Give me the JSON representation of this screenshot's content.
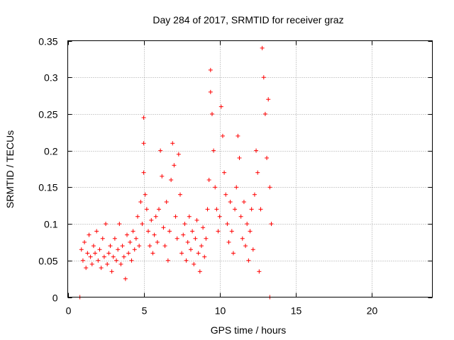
{
  "chart_data": {
    "type": "scatter",
    "title": "Day 284 of 2017, SRMTID for receiver graz",
    "xlabel": "GPS time / hours",
    "ylabel": "SRMTID / TECUs",
    "xlim": [
      0,
      24
    ],
    "ylim": [
      0,
      0.35
    ],
    "xticks": [
      0,
      5,
      10,
      15,
      20
    ],
    "xtick_labels": [
      "0",
      "5",
      "10",
      "15",
      "20"
    ],
    "yticks": [
      0,
      0.05,
      0.1,
      0.15,
      0.2,
      0.25,
      0.3,
      0.35
    ],
    "ytick_labels": [
      "0",
      "0.05",
      "0.1",
      "0.15",
      "0.2",
      "0.25",
      "0.3",
      "0.35"
    ],
    "grid": true,
    "marker": "+",
    "series_color": "#ff0000",
    "series": [
      {
        "name": "SRMTID",
        "points": [
          [
            0.8,
            0.0
          ],
          [
            13.3,
            0.0
          ],
          [
            0.9,
            0.065
          ],
          [
            1.0,
            0.05
          ],
          [
            1.1,
            0.075
          ],
          [
            1.2,
            0.04
          ],
          [
            1.3,
            0.06
          ],
          [
            1.4,
            0.085
          ],
          [
            1.5,
            0.055
          ],
          [
            1.6,
            0.045
          ],
          [
            1.7,
            0.07
          ],
          [
            1.8,
            0.06
          ],
          [
            1.9,
            0.09
          ],
          [
            2.0,
            0.05
          ],
          [
            2.1,
            0.065
          ],
          [
            2.2,
            0.04
          ],
          [
            2.3,
            0.08
          ],
          [
            2.4,
            0.055
          ],
          [
            2.5,
            0.1
          ],
          [
            2.6,
            0.045
          ],
          [
            2.7,
            0.06
          ],
          [
            2.8,
            0.07
          ],
          [
            2.9,
            0.035
          ],
          [
            3.0,
            0.055
          ],
          [
            3.1,
            0.08
          ],
          [
            3.2,
            0.05
          ],
          [
            3.3,
            0.065
          ],
          [
            3.4,
            0.1
          ],
          [
            3.5,
            0.045
          ],
          [
            3.6,
            0.07
          ],
          [
            3.7,
            0.055
          ],
          [
            3.8,
            0.025
          ],
          [
            3.9,
            0.085
          ],
          [
            4.0,
            0.06
          ],
          [
            4.1,
            0.075
          ],
          [
            4.2,
            0.05
          ],
          [
            4.3,
            0.09
          ],
          [
            4.4,
            0.065
          ],
          [
            4.5,
            0.08
          ],
          [
            4.6,
            0.11
          ],
          [
            4.7,
            0.07
          ],
          [
            4.8,
            0.13
          ],
          [
            4.9,
            0.1
          ],
          [
            5.0,
            0.245
          ],
          [
            5.0,
            0.21
          ],
          [
            5.0,
            0.17
          ],
          [
            5.1,
            0.14
          ],
          [
            5.2,
            0.12
          ],
          [
            5.3,
            0.09
          ],
          [
            5.4,
            0.07
          ],
          [
            5.5,
            0.105
          ],
          [
            5.6,
            0.06
          ],
          [
            5.7,
            0.085
          ],
          [
            5.8,
            0.11
          ],
          [
            5.9,
            0.075
          ],
          [
            6.0,
            0.12
          ],
          [
            6.1,
            0.2
          ],
          [
            6.2,
            0.165
          ],
          [
            6.3,
            0.095
          ],
          [
            6.4,
            0.07
          ],
          [
            6.5,
            0.13
          ],
          [
            6.6,
            0.05
          ],
          [
            6.7,
            0.09
          ],
          [
            6.8,
            0.16
          ],
          [
            6.9,
            0.21
          ],
          [
            7.0,
            0.18
          ],
          [
            7.1,
            0.11
          ],
          [
            7.2,
            0.08
          ],
          [
            7.3,
            0.195
          ],
          [
            7.4,
            0.14
          ],
          [
            7.5,
            0.06
          ],
          [
            7.6,
            0.085
          ],
          [
            7.7,
            0.1
          ],
          [
            7.8,
            0.05
          ],
          [
            7.9,
            0.075
          ],
          [
            8.0,
            0.11
          ],
          [
            8.1,
            0.065
          ],
          [
            8.2,
            0.09
          ],
          [
            8.3,
            0.045
          ],
          [
            8.4,
            0.08
          ],
          [
            8.5,
            0.105
          ],
          [
            8.6,
            0.06
          ],
          [
            8.7,
            0.035
          ],
          [
            8.8,
            0.07
          ],
          [
            8.9,
            0.095
          ],
          [
            9.0,
            0.055
          ],
          [
            9.1,
            0.08
          ],
          [
            9.2,
            0.12
          ],
          [
            9.3,
            0.16
          ],
          [
            9.4,
            0.31
          ],
          [
            9.4,
            0.28
          ],
          [
            9.5,
            0.25
          ],
          [
            9.6,
            0.2
          ],
          [
            9.7,
            0.15
          ],
          [
            9.8,
            0.12
          ],
          [
            9.9,
            0.09
          ],
          [
            10.0,
            0.11
          ],
          [
            10.1,
            0.26
          ],
          [
            10.2,
            0.22
          ],
          [
            10.3,
            0.17
          ],
          [
            10.4,
            0.14
          ],
          [
            10.5,
            0.1
          ],
          [
            10.6,
            0.075
          ],
          [
            10.7,
            0.13
          ],
          [
            10.8,
            0.09
          ],
          [
            10.9,
            0.06
          ],
          [
            11.0,
            0.12
          ],
          [
            11.1,
            0.15
          ],
          [
            11.2,
            0.22
          ],
          [
            11.3,
            0.19
          ],
          [
            11.4,
            0.11
          ],
          [
            11.5,
            0.08
          ],
          [
            11.6,
            0.13
          ],
          [
            11.7,
            0.07
          ],
          [
            11.8,
            0.1
          ],
          [
            11.9,
            0.05
          ],
          [
            12.0,
            0.09
          ],
          [
            12.1,
            0.12
          ],
          [
            12.2,
            0.065
          ],
          [
            12.3,
            0.14
          ],
          [
            12.4,
            0.2
          ],
          [
            12.5,
            0.17
          ],
          [
            12.6,
            0.035
          ],
          [
            12.7,
            0.12
          ],
          [
            12.8,
            0.34
          ],
          [
            12.9,
            0.3
          ],
          [
            13.0,
            0.25
          ],
          [
            13.1,
            0.19
          ],
          [
            13.2,
            0.27
          ],
          [
            13.3,
            0.15
          ],
          [
            13.4,
            0.1
          ]
        ]
      }
    ]
  }
}
